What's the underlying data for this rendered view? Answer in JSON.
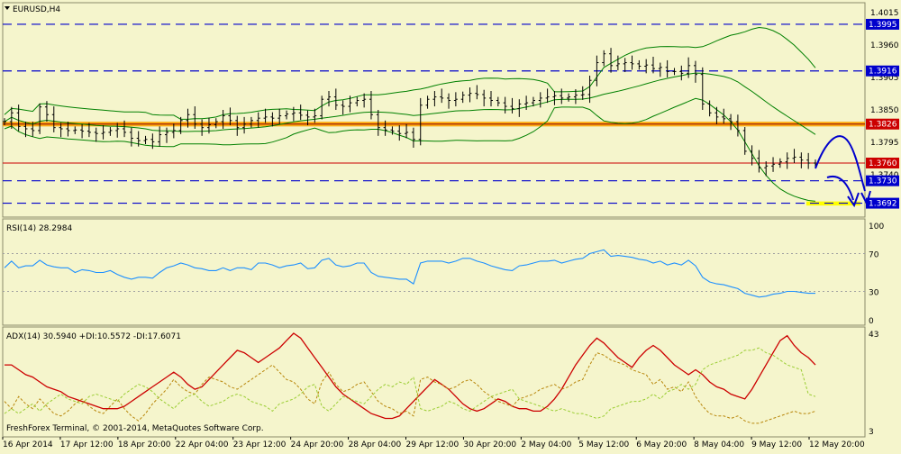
{
  "window_title": "EURUSD,H4",
  "footer_text": "FreshForex Terminal, © 2001-2014, MetaQuotes Software Corp.",
  "colors": {
    "background": "#f5f5cc",
    "grid_line": "#a0a07a",
    "candle": "#000000",
    "bollinger": "#008000",
    "horizontal_level": "#0000cc",
    "red_level": "#cc0000",
    "resistance_band": "#ffa500",
    "support_band": "#ffff00",
    "rsi_line": "#1e90ff",
    "adx_line": "#cc0000",
    "di_plus_line": "#b8860b",
    "di_minus_line": "#9acd32",
    "label_blue": "#0000cc",
    "label_red": "#cc0000"
  },
  "chart_data": [
    {
      "type": "candlestick",
      "symbol": "EURUSD",
      "timeframe": "H4",
      "title": "EURUSD,H4",
      "ylim": [
        1.367,
        1.403
      ],
      "y_ticks": [
        1.4015,
        1.396,
        1.3905,
        1.385,
        1.3795,
        1.374
      ],
      "x_tick_labels": [
        "16 Apr 2014",
        "17 Apr 12:00",
        "18 Apr 20:00",
        "22 Apr 04:00",
        "23 Apr 12:00",
        "24 Apr 20:00",
        "28 Apr 04:00",
        "29 Apr 12:00",
        "30 Apr 20:00",
        "2 May 04:00",
        "5 May 12:00",
        "6 May 20:00",
        "8 May 04:00",
        "9 May 12:00",
        "12 May 20:00"
      ],
      "closes": [
        1.383,
        1.3845,
        1.3822,
        1.3818,
        1.3815,
        1.3855,
        1.3842,
        1.382,
        1.3818,
        1.3815,
        1.3816,
        1.3814,
        1.3812,
        1.381,
        1.3812,
        1.3815,
        1.3818,
        1.3812,
        1.3802,
        1.3798,
        1.38,
        1.3796,
        1.3808,
        1.3812,
        1.3815,
        1.3832,
        1.3842,
        1.3826,
        1.382,
        1.3825,
        1.383,
        1.384,
        1.3832,
        1.382,
        1.3826,
        1.3832,
        1.3836,
        1.3838,
        1.3836,
        1.384,
        1.3843,
        1.3845,
        1.3841,
        1.3838,
        1.384,
        1.3868,
        1.3872,
        1.3858,
        1.3856,
        1.3862,
        1.3866,
        1.3868,
        1.3842,
        1.382,
        1.3816,
        1.3814,
        1.381,
        1.3812,
        1.38,
        1.3858,
        1.3868,
        1.3872,
        1.387,
        1.3866,
        1.3868,
        1.3875,
        1.3878,
        1.3876,
        1.387,
        1.3866,
        1.3862,
        1.3856,
        1.3852,
        1.386,
        1.3862,
        1.3866,
        1.387,
        1.3872,
        1.3874,
        1.387,
        1.3872,
        1.3875,
        1.3876,
        1.39,
        1.393,
        1.3945,
        1.3925,
        1.3928,
        1.393,
        1.3928,
        1.3924,
        1.3926,
        1.392,
        1.3922,
        1.3915,
        1.3915,
        1.3912,
        1.3925,
        1.391,
        1.386,
        1.3845,
        1.3838,
        1.3835,
        1.383,
        1.3815,
        1.378,
        1.3768,
        1.3752,
        1.3755,
        1.3758,
        1.3762,
        1.3768,
        1.377,
        1.3765,
        1.376,
        1.3758
      ],
      "levels": [
        {
          "value": "1.3995",
          "color": "blue"
        },
        {
          "value": "1.3916",
          "color": "blue"
        },
        {
          "value": "1.3826",
          "color": "orange band"
        },
        {
          "value": "1.3760",
          "color": "red"
        },
        {
          "value": "1.3730",
          "color": "blue"
        },
        {
          "value": "1.3692",
          "color": "blue"
        }
      ],
      "indicators": [
        "Bollinger Bands"
      ],
      "annotations": [
        "resistance band at 1.3826 (orange)",
        "support band at 1.3692 (yellow)",
        "blue projected path arrows"
      ],
      "grid": false
    },
    {
      "type": "line",
      "title": "RSI(14) 28.2984",
      "indicator": "RSI",
      "period": 14,
      "current_value": 28.2984,
      "ylim": [
        0,
        100
      ],
      "y_ticks": [
        100,
        70,
        30,
        0
      ],
      "reference_levels": [
        70,
        30
      ],
      "series": [
        {
          "name": "RSI(14)",
          "values": [
            55,
            62,
            55,
            57,
            57,
            63,
            58,
            56,
            55,
            55,
            50,
            53,
            52,
            50,
            50,
            52,
            48,
            45,
            43,
            45,
            45,
            44,
            50,
            55,
            57,
            60,
            58,
            55,
            54,
            52,
            52,
            55,
            52,
            55,
            55,
            53,
            60,
            60,
            58,
            55,
            57,
            58,
            60,
            54,
            55,
            63,
            65,
            58,
            56,
            57,
            60,
            60,
            50,
            46,
            45,
            44,
            43,
            43,
            38,
            60,
            62,
            62,
            62,
            60,
            62,
            65,
            65,
            62,
            60,
            57,
            55,
            53,
            52,
            57,
            58,
            60,
            62,
            62,
            63,
            60,
            62,
            64,
            65,
            70,
            72,
            74,
            67,
            68,
            67,
            66,
            64,
            63,
            60,
            62,
            58,
            60,
            58,
            63,
            57,
            45,
            40,
            38,
            37,
            35,
            33,
            28,
            26,
            24,
            25,
            27,
            28,
            30,
            30,
            29,
            28,
            28
          ]
        }
      ]
    },
    {
      "type": "line",
      "title": "ADX(14) 30.5940 +DI:10.5572 -DI:17.6071",
      "indicator": "ADX",
      "period": 14,
      "ylim": [
        3,
        43
      ],
      "y_ticks": [
        43,
        3
      ],
      "series": [
        {
          "name": "ADX(14)",
          "values": [
            30,
            30,
            28,
            26,
            25,
            23,
            21,
            20,
            19,
            17,
            16,
            15,
            14,
            13,
            12,
            12,
            12,
            13,
            15,
            17,
            19,
            21,
            23,
            25,
            27,
            25,
            22,
            20,
            21,
            24,
            27,
            30,
            33,
            36,
            35,
            33,
            31,
            33,
            35,
            37,
            40,
            43,
            41,
            37,
            33,
            29,
            25,
            21,
            18,
            16,
            14,
            12,
            10,
            9,
            8,
            8,
            9,
            12,
            15,
            18,
            21,
            24,
            22,
            20,
            17,
            14,
            12,
            11,
            12,
            14,
            16,
            15,
            13,
            12,
            12,
            11,
            11,
            13,
            16,
            20,
            25,
            30,
            34,
            38,
            41,
            39,
            36,
            33,
            31,
            29,
            33,
            36,
            38,
            36,
            33,
            30,
            28,
            26,
            28,
            26,
            23,
            21,
            20,
            18,
            17,
            16,
            20,
            25,
            30,
            35,
            40,
            42,
            38,
            35,
            33,
            30
          ]
        },
        {
          "name": "+DI",
          "values": [
            15,
            12,
            17,
            14,
            12,
            16,
            13,
            10,
            9,
            11,
            14,
            16,
            13,
            11,
            10,
            13,
            16,
            12,
            9,
            7,
            10,
            14,
            17,
            20,
            24,
            21,
            19,
            18,
            22,
            25,
            24,
            23,
            21,
            20,
            22,
            24,
            26,
            28,
            30,
            27,
            24,
            23,
            20,
            16,
            14,
            23,
            27,
            22,
            19,
            20,
            22,
            23,
            19,
            15,
            13,
            12,
            10,
            11,
            9,
            24,
            25,
            23,
            22,
            20,
            21,
            23,
            24,
            22,
            19,
            17,
            15,
            14,
            13,
            16,
            17,
            18,
            20,
            21,
            22,
            20,
            21,
            23,
            24,
            30,
            35,
            34,
            32,
            31,
            30,
            28,
            27,
            26,
            22,
            24,
            20,
            21,
            19,
            23,
            17,
            13,
            10,
            9,
            9,
            8,
            9,
            7,
            6,
            6,
            7,
            8,
            9,
            10,
            11,
            10,
            10,
            11
          ]
        },
        {
          "name": "-DI",
          "values": [
            10,
            12,
            10,
            12,
            14,
            11,
            14,
            16,
            18,
            16,
            15,
            14,
            17,
            18,
            17,
            16,
            15,
            18,
            20,
            22,
            21,
            19,
            16,
            14,
            12,
            15,
            17,
            18,
            15,
            13,
            14,
            15,
            17,
            18,
            17,
            15,
            14,
            13,
            11,
            14,
            15,
            16,
            18,
            21,
            22,
            13,
            11,
            14,
            17,
            16,
            15,
            14,
            17,
            20,
            22,
            21,
            23,
            22,
            25,
            12,
            11,
            12,
            13,
            15,
            14,
            12,
            11,
            13,
            15,
            17,
            18,
            19,
            20,
            16,
            15,
            14,
            13,
            12,
            11,
            12,
            11,
            10,
            10,
            9,
            8,
            9,
            12,
            13,
            14,
            15,
            15,
            16,
            18,
            16,
            19,
            20,
            22,
            20,
            22,
            28,
            30,
            31,
            32,
            33,
            34,
            36,
            36,
            37,
            35,
            34,
            32,
            30,
            29,
            28,
            18,
            17
          ]
        }
      ]
    }
  ],
  "panes": {
    "price_ticks": [
      {
        "label": "1.4015",
        "y": 1.4015
      },
      {
        "label": "1.3960",
        "y": 1.396
      },
      {
        "label": "1.3905",
        "y": 1.3905
      },
      {
        "label": "1.3850",
        "y": 1.385
      },
      {
        "label": "1.3795",
        "y": 1.3795
      },
      {
        "label": "1.3740",
        "y": 1.374
      }
    ],
    "price_badges": [
      {
        "label": "1.3995",
        "y": 1.3995,
        "style": "blue"
      },
      {
        "label": "1.3916",
        "y": 1.3916,
        "style": "blue"
      },
      {
        "label": "1.3826",
        "y": 1.3826,
        "style": "red"
      },
      {
        "label": "1.3760",
        "y": 1.376,
        "style": "red"
      },
      {
        "label": "1.3730",
        "y": 1.373,
        "style": "blue"
      },
      {
        "label": "1.3692",
        "y": 1.3692,
        "style": "blue"
      }
    ],
    "rsi_ticks": [
      {
        "label": "100",
        "y": 100
      },
      {
        "label": "70",
        "y": 70
      },
      {
        "label": "30",
        "y": 30
      },
      {
        "label": "0",
        "y": 0
      }
    ],
    "adx_ticks": [
      {
        "label": "43",
        "y": 43
      },
      {
        "label": "3",
        "y": 3
      }
    ]
  }
}
